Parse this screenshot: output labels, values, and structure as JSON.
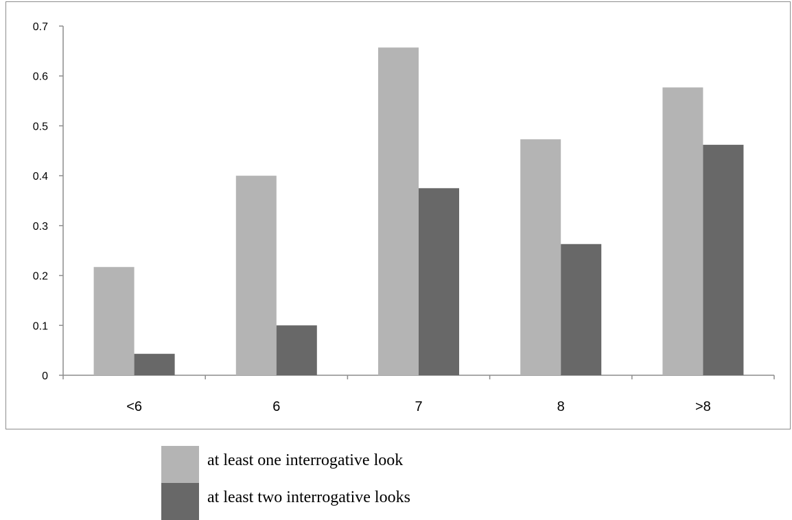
{
  "chart_data": {
    "type": "bar",
    "title": "",
    "xlabel": "",
    "ylabel": "",
    "categories": [
      "<6",
      "6",
      "7",
      "8",
      ">8"
    ],
    "series": [
      {
        "name": "at least one interrogative look",
        "color": "#b4b4b4",
        "values": [
          0.217,
          0.4,
          0.657,
          0.473,
          0.577
        ]
      },
      {
        "name": "at least two interrogative looks",
        "color": "#686868",
        "values": [
          0.043,
          0.1,
          0.375,
          0.263,
          0.462
        ]
      }
    ],
    "ylim": [
      0,
      0.7
    ],
    "yticks": [
      0,
      0.1,
      0.2,
      0.3,
      0.4,
      0.5,
      0.6,
      0.7
    ],
    "ytick_labels": [
      "0",
      "0.1",
      "0.2",
      "0.3",
      "0.4",
      "0.5",
      "0.6",
      "0.7"
    ],
    "grid": false,
    "legend_position": "bottom"
  }
}
